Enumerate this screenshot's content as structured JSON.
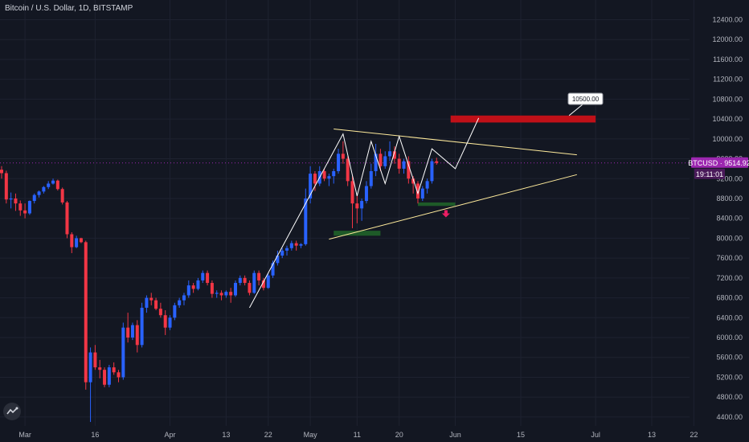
{
  "symbol_title": "Bitcoin / U.S. Dollar, 1D, BITSTAMP",
  "chart_data": {
    "type": "candlestick",
    "y_ticks": [
      4400,
      4800,
      5200,
      5600,
      6000,
      6400,
      6800,
      7200,
      7600,
      8000,
      8400,
      8800,
      9200,
      9600,
      10000,
      10400,
      10800,
      11200,
      11600,
      12000,
      12400
    ],
    "y_tick_labels": [
      "4400.00",
      "4800.00",
      "5200.00",
      "5600.00",
      "6000.00",
      "6400.00",
      "6800.00",
      "7200.00",
      "7600.00",
      "8000.00",
      "8400.00",
      "8800.00",
      "9200.00",
      "9600.00",
      "10000.00",
      "10400.00",
      "10800.00",
      "11200.00",
      "11600.00",
      "12000.00",
      "12400.00"
    ],
    "ylim": [
      4300,
      12800
    ],
    "x_ticks": [
      {
        "label": "Mar",
        "date": "2020-03-01"
      },
      {
        "label": "16",
        "date": "2020-03-16"
      },
      {
        "label": "Apr",
        "date": "2020-04-01"
      },
      {
        "label": "13",
        "date": "2020-04-13"
      },
      {
        "label": "22",
        "date": "2020-04-22"
      },
      {
        "label": "May",
        "date": "2020-05-01"
      },
      {
        "label": "11",
        "date": "2020-05-11"
      },
      {
        "label": "20",
        "date": "2020-05-20"
      },
      {
        "label": "Jun",
        "date": "2020-06-01"
      },
      {
        "label": "15",
        "date": "2020-06-15"
      },
      {
        "label": "Jul",
        "date": "2020-07-01"
      },
      {
        "label": "13",
        "date": "2020-07-13"
      },
      {
        "label": "22",
        "date": "2020-07-22"
      }
    ],
    "first_date": "2020-02-25",
    "candles": [
      [
        9380,
        9450,
        9200,
        9310
      ],
      [
        9310,
        9360,
        8700,
        8780
      ],
      [
        8780,
        8920,
        8600,
        8800
      ],
      [
        8800,
        8900,
        8550,
        8700
      ],
      [
        8700,
        8760,
        8450,
        8560
      ],
      [
        8560,
        8700,
        8400,
        8500
      ],
      [
        8500,
        8760,
        8470,
        8750
      ],
      [
        8750,
        8900,
        8700,
        8870
      ],
      [
        8870,
        8960,
        8820,
        8940
      ],
      [
        8940,
        9050,
        8900,
        9030
      ],
      [
        9030,
        9150,
        8990,
        9100
      ],
      [
        9100,
        9200,
        9080,
        9160
      ],
      [
        9160,
        9180,
        8960,
        8990
      ],
      [
        8990,
        9020,
        8680,
        8720
      ],
      [
        8720,
        8750,
        8000,
        8080
      ],
      [
        8080,
        8120,
        7700,
        7820
      ],
      [
        7820,
        8050,
        7800,
        8000
      ],
      [
        8000,
        8010,
        7900,
        7920
      ],
      [
        7920,
        7950,
        4950,
        5100
      ],
      [
        5100,
        5800,
        4300,
        5700
      ],
      [
        5700,
        5850,
        5350,
        5400
      ],
      [
        5400,
        5550,
        5180,
        5350
      ],
      [
        5350,
        5400,
        5000,
        5050
      ],
      [
        5050,
        5450,
        5000,
        5400
      ],
      [
        5400,
        5500,
        5250,
        5300
      ],
      [
        5300,
        5350,
        5100,
        5200
      ],
      [
        5200,
        6300,
        5150,
        6200
      ],
      [
        6200,
        6500,
        5900,
        6000
      ],
      [
        6000,
        6300,
        5950,
        6250
      ],
      [
        6250,
        6350,
        5700,
        5850
      ],
      [
        5850,
        6700,
        5800,
        6600
      ],
      [
        6600,
        6850,
        6500,
        6800
      ],
      [
        6800,
        6900,
        6650,
        6750
      ],
      [
        6750,
        6800,
        6550,
        6580
      ],
      [
        6580,
        6700,
        6400,
        6450
      ],
      [
        6450,
        6550,
        6050,
        6200
      ],
      [
        6200,
        6450,
        6150,
        6400
      ],
      [
        6400,
        6700,
        6350,
        6650
      ],
      [
        6650,
        6800,
        6600,
        6750
      ],
      [
        6750,
        6900,
        6650,
        6850
      ],
      [
        6850,
        7150,
        6800,
        7050
      ],
      [
        7050,
        7100,
        6900,
        6980
      ],
      [
        6980,
        7200,
        6950,
        7150
      ],
      [
        7150,
        7350,
        7100,
        7300
      ],
      [
        7300,
        7350,
        7050,
        7100
      ],
      [
        7100,
        7150,
        6800,
        6880
      ],
      [
        6880,
        6950,
        6800,
        6900
      ],
      [
        6900,
        6950,
        6750,
        6850
      ],
      [
        6850,
        6950,
        6800,
        6920
      ],
      [
        6920,
        7000,
        6700,
        6850
      ],
      [
        6850,
        7150,
        6820,
        7100
      ],
      [
        7100,
        7250,
        7050,
        7200
      ],
      [
        7200,
        7250,
        7050,
        7100
      ],
      [
        7100,
        7150,
        6850,
        6900
      ],
      [
        6900,
        7350,
        6880,
        7300
      ],
      [
        7300,
        7350,
        7050,
        7150
      ],
      [
        7150,
        7200,
        6950,
        7000
      ],
      [
        7000,
        7300,
        6980,
        7250
      ],
      [
        7250,
        7550,
        7200,
        7500
      ],
      [
        7500,
        7750,
        7450,
        7650
      ],
      [
        7650,
        7800,
        7600,
        7750
      ],
      [
        7750,
        7850,
        7650,
        7800
      ],
      [
        7800,
        7950,
        7750,
        7900
      ],
      [
        7900,
        7950,
        7750,
        7850
      ],
      [
        7850,
        7900,
        7800,
        7880
      ],
      [
        7880,
        9000,
        7850,
        8800
      ],
      [
        8800,
        9450,
        8700,
        9300
      ],
      [
        9300,
        9350,
        8950,
        9100
      ],
      [
        9100,
        9450,
        9050,
        9350
      ],
      [
        9350,
        9400,
        9150,
        9200
      ],
      [
        9200,
        9300,
        9050,
        9250
      ],
      [
        9250,
        9400,
        9100,
        9350
      ],
      [
        9350,
        9800,
        9300,
        9700
      ],
      [
        9700,
        9950,
        9500,
        9600
      ],
      [
        9600,
        9650,
        9050,
        9150
      ],
      [
        9150,
        9250,
        8200,
        8700
      ],
      [
        8700,
        8900,
        8300,
        8600
      ],
      [
        8600,
        8800,
        8350,
        8750
      ],
      [
        8750,
        9150,
        8700,
        9050
      ],
      [
        9050,
        9500,
        9000,
        9350
      ],
      [
        9350,
        9900,
        9250,
        9700
      ],
      [
        9700,
        9800,
        9350,
        9450
      ],
      [
        9450,
        9750,
        9400,
        9650
      ],
      [
        9650,
        9950,
        9550,
        9750
      ],
      [
        9750,
        9850,
        9500,
        9600
      ],
      [
        9600,
        9700,
        9300,
        9400
      ],
      [
        9400,
        9600,
        9300,
        9550
      ],
      [
        9550,
        9650,
        9100,
        9200
      ],
      [
        9200,
        9250,
        8900,
        9100
      ],
      [
        9100,
        9150,
        8700,
        8800
      ],
      [
        8800,
        9050,
        8750,
        9000
      ],
      [
        9000,
        9200,
        8900,
        9150
      ],
      [
        9150,
        9600,
        9100,
        9550
      ],
      [
        9550,
        9620,
        9480,
        9515
      ]
    ],
    "price_label": "BTCUSD · 9514.92",
    "countdown": "19:11:01",
    "last_price": 9514.92,
    "target_label": "10500.00",
    "target_price": 10500,
    "colors": {
      "up": "#2962ff",
      "down": "#f23645",
      "background": "#131722",
      "grid": "#1e2230",
      "lines": "#ffffff",
      "trend": "#ffeb9c",
      "resistance_box": "#c01018",
      "support_box": "#1e5a28",
      "current_tag": "#9c27b0",
      "arrow": "#e91e63"
    },
    "drawings": {
      "resistance_box": {
        "from": "2020-05-31",
        "to": "2020-07-01",
        "top": 10470,
        "bottom": 10330
      },
      "support_box_1": {
        "from": "2020-05-06",
        "to": "2020-05-16",
        "top": 8150,
        "bottom": 8050
      },
      "support_box_2": {
        "from": "2020-05-24",
        "to": "2020-06-01",
        "top": 8720,
        "bottom": 8650
      },
      "trend_upper": [
        [
          "2020-05-06",
          10200
        ],
        [
          "2020-06-27",
          9680
        ]
      ],
      "trend_lower": [
        [
          "2020-05-05",
          7980
        ],
        [
          "2020-06-27",
          9280
        ]
      ],
      "wave_path": [
        [
          "2020-04-18",
          6600
        ],
        [
          "2020-05-08",
          10100
        ],
        [
          "2020-05-11",
          8850
        ],
        [
          "2020-05-14",
          9950
        ],
        [
          "2020-05-17",
          9100
        ],
        [
          "2020-05-20",
          10050
        ],
        [
          "2020-05-24",
          8900
        ],
        [
          "2020-05-27",
          9800
        ],
        [
          "2020-06-01",
          9400
        ],
        [
          "2020-06-06",
          10420
        ]
      ],
      "down_arrow_at": [
        "2020-05-30",
        8500
      ]
    }
  }
}
